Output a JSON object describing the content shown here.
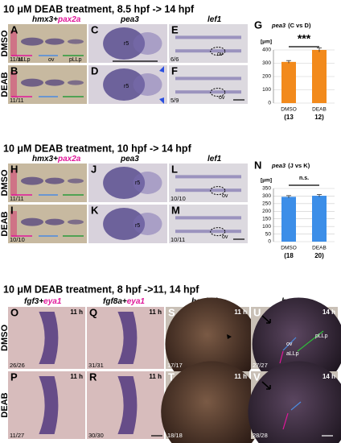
{
  "sections": [
    {
      "title": "10 μM DEAB treatment, 8.5 hpf -> 14 hpf",
      "headers": [
        {
          "main": "hmx3+",
          "accent": "pax2a"
        },
        {
          "main": "pea3"
        },
        {
          "main": "lef1"
        }
      ],
      "rows": [
        "DMSO",
        "DEAB"
      ],
      "panels": [
        {
          "letter": "A",
          "count": "11/11",
          "notes": [
            "aLLp",
            "ov",
            "pLLp"
          ]
        },
        {
          "letter": "B",
          "count": "11/11"
        },
        {
          "letter": "C",
          "notes": [
            "r5"
          ]
        },
        {
          "letter": "D",
          "notes": [
            "r5"
          ]
        },
        {
          "letter": "E",
          "count": "6/6",
          "notes": [
            "ov"
          ]
        },
        {
          "letter": "F",
          "count": "5/9",
          "notes": [
            "ov"
          ]
        }
      ]
    },
    {
      "title": "10 μM DEAB treatment, 10 hpf -> 14 hpf",
      "headers": [
        {
          "main": "hmx3+",
          "accent": "pax2a"
        },
        {
          "main": "pea3"
        },
        {
          "main": "lef1"
        }
      ],
      "rows": [
        "DMSO",
        "DEAB"
      ],
      "panels": [
        {
          "letter": "H",
          "count": "11/11"
        },
        {
          "letter": "I",
          "count": "10/10"
        },
        {
          "letter": "J",
          "notes": [
            "r5"
          ]
        },
        {
          "letter": "K",
          "notes": [
            "r5"
          ]
        },
        {
          "letter": "L",
          "count": "10/10",
          "notes": [
            "ov"
          ]
        },
        {
          "letter": "M",
          "count": "10/11",
          "notes": [
            "ov"
          ]
        }
      ]
    },
    {
      "title": "10 μM DEAB treatment, 8 hpf ->11, 14 hpf",
      "headers": [
        {
          "main": "fgf3+",
          "accent": "eya1"
        },
        {
          "main": "fgf8a+",
          "accent": "eya1"
        },
        {
          "main": "hoxb1b"
        },
        {
          "main": "hmx3"
        }
      ],
      "rows": [
        "DMSO",
        "DEAB"
      ],
      "panels": [
        {
          "letter": "O",
          "time": "11 h",
          "count": "26/26"
        },
        {
          "letter": "P",
          "time": "11 h",
          "count": "11/27"
        },
        {
          "letter": "Q",
          "time": "11 h",
          "count": "31/31"
        },
        {
          "letter": "R",
          "time": "11 h",
          "count": "30/30"
        },
        {
          "letter": "S",
          "time": "11 h",
          "count": "17/17"
        },
        {
          "letter": "T",
          "time": "11 h",
          "count": "18/18"
        },
        {
          "letter": "U",
          "time": "14 h",
          "count": "27/27",
          "notes": [
            "pLLp",
            "ov",
            "aLLp"
          ]
        },
        {
          "letter": "V",
          "time": "14 h",
          "count": "28/28"
        }
      ]
    }
  ],
  "chart_data": [
    {
      "type": "bar",
      "letter": "G",
      "title": "pea3",
      "subtitle": "(C vs D)",
      "ylabel": "[μm]",
      "categories": [
        "DMSO",
        "DEAB"
      ],
      "n_labels": [
        "(13",
        "12)"
      ],
      "values": [
        310,
        400
      ],
      "errors": [
        10,
        15
      ],
      "color": "#f28a1c",
      "ylim": [
        0,
        400
      ],
      "yticks": [
        0,
        100,
        200,
        300,
        400
      ],
      "annotation": "***"
    },
    {
      "type": "bar",
      "letter": "N",
      "title": "pea3",
      "subtitle": "(J vs K)",
      "ylabel": "[μm]",
      "categories": [
        "DMSO",
        "DEAB"
      ],
      "n_labels": [
        "(18",
        "20)"
      ],
      "values": [
        295,
        302
      ],
      "errors": [
        8,
        8
      ],
      "color": "#3c8ee8",
      "ylim": [
        0,
        350
      ],
      "yticks": [
        0,
        50,
        100,
        150,
        200,
        250,
        300,
        350
      ],
      "annotation": "n.s."
    }
  ]
}
